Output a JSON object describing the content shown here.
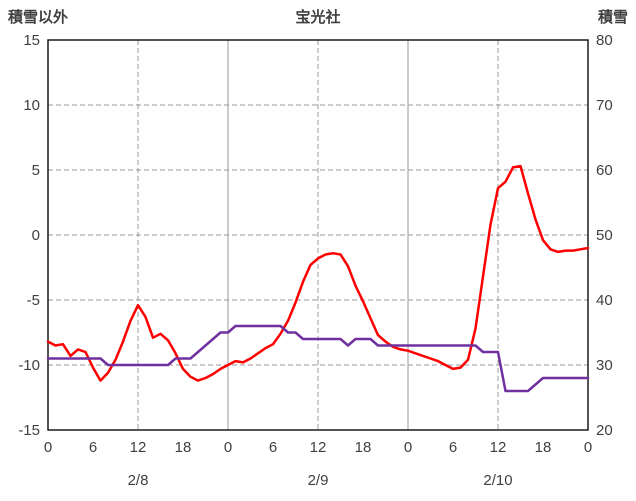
{
  "header": {
    "left_axis_label": "積雪以外",
    "title": "宝光社",
    "right_axis_label": "積雪"
  },
  "colors": {
    "red_series": "#FF0000",
    "purple_series": "#7030A0",
    "grid": "#999999",
    "border": "#1A1A1A",
    "text": "#404040"
  },
  "chart_data": {
    "type": "line",
    "title": "宝光社",
    "x_unit": "hour",
    "x_range": [
      0,
      72
    ],
    "x_ticks": [
      0,
      6,
      12,
      18,
      24,
      30,
      36,
      42,
      48,
      54,
      60,
      66,
      72
    ],
    "x_tick_labels": [
      "0",
      "6",
      "12",
      "18",
      "0",
      "6",
      "12",
      "18",
      "0",
      "6",
      "12",
      "18",
      "0"
    ],
    "day_labels": [
      {
        "label": "2/8",
        "x": 12
      },
      {
        "label": "2/9",
        "x": 36
      },
      {
        "label": "2/10",
        "x": 60
      }
    ],
    "left_axis": {
      "label": "積雪以外",
      "min": -15,
      "max": 15,
      "ticks": [
        15,
        10,
        5,
        0,
        -5,
        -10,
        -15
      ]
    },
    "right_axis": {
      "label": "積雪",
      "min": 20,
      "max": 80,
      "ticks": [
        80,
        70,
        60,
        50,
        40,
        30,
        20
      ]
    },
    "gridlines": {
      "horizontal_dashed": [
        10,
        5,
        0,
        -5,
        -10
      ],
      "vertical_solid": [
        24,
        48
      ],
      "vertical_dashed": [
        12,
        36,
        60
      ]
    },
    "legend": "none",
    "series": [
      {
        "name": "red",
        "axis": "left",
        "color": "#FF0000",
        "x": [
          0,
          1,
          2,
          3,
          4,
          5,
          6,
          7,
          8,
          9,
          10,
          11,
          12,
          13,
          14,
          15,
          16,
          17,
          18,
          19,
          20,
          21,
          22,
          23,
          24,
          25,
          26,
          27,
          28,
          29,
          30,
          31,
          32,
          33,
          34,
          35,
          36,
          37,
          38,
          39,
          40,
          41,
          42,
          43,
          44,
          45,
          46,
          47,
          48,
          49,
          50,
          51,
          52,
          53,
          54,
          55,
          56,
          57,
          58,
          59,
          60,
          61,
          62,
          63,
          64,
          65,
          66,
          67,
          68,
          69,
          70,
          71,
          72
        ],
        "values": [
          -8.2,
          -8.5,
          -8.4,
          -9.3,
          -8.8,
          -9.0,
          -10.2,
          -11.2,
          -10.6,
          -9.6,
          -8.2,
          -6.6,
          -5.4,
          -6.3,
          -7.9,
          -7.6,
          -8.1,
          -9.1,
          -10.3,
          -10.9,
          -11.2,
          -11.0,
          -10.7,
          -10.3,
          -10.0,
          -9.7,
          -9.8,
          -9.5,
          -9.1,
          -8.7,
          -8.4,
          -7.6,
          -6.6,
          -5.2,
          -3.6,
          -2.3,
          -1.8,
          -1.5,
          -1.4,
          -1.5,
          -2.4,
          -3.9,
          -5.1,
          -6.4,
          -7.7,
          -8.2,
          -8.6,
          -8.8,
          -8.9,
          -9.1,
          -9.3,
          -9.5,
          -9.7,
          -10.0,
          -10.3,
          -10.2,
          -9.6,
          -7.2,
          -3.2,
          0.8,
          3.6,
          4.1,
          5.2,
          5.3,
          3.2,
          1.2,
          -0.4,
          -1.1,
          -1.3,
          -1.2,
          -1.2,
          -1.1,
          -1.0
        ]
      },
      {
        "name": "purple",
        "axis": "right",
        "color": "#7030A0",
        "x": [
          0,
          1,
          2,
          3,
          4,
          5,
          6,
          7,
          8,
          9,
          10,
          11,
          12,
          13,
          14,
          15,
          16,
          17,
          18,
          19,
          20,
          21,
          22,
          23,
          24,
          25,
          26,
          27,
          28,
          29,
          30,
          31,
          32,
          33,
          34,
          35,
          36,
          37,
          38,
          39,
          40,
          41,
          42,
          43,
          44,
          45,
          46,
          47,
          48,
          49,
          50,
          51,
          52,
          53,
          54,
          55,
          56,
          57,
          58,
          59,
          60,
          61,
          62,
          63,
          64,
          65,
          66,
          67,
          68,
          69,
          70,
          71,
          72
        ],
        "values": [
          31,
          31,
          31,
          31,
          31,
          31,
          31,
          31,
          30,
          30,
          30,
          30,
          30,
          30,
          30,
          30,
          30,
          31,
          31,
          31,
          32,
          33,
          34,
          35,
          35,
          36,
          36,
          36,
          36,
          36,
          36,
          36,
          35,
          35,
          34,
          34,
          34,
          34,
          34,
          34,
          33,
          34,
          34,
          34,
          33,
          33,
          33,
          33,
          33,
          33,
          33,
          33,
          33,
          33,
          33,
          33,
          33,
          33,
          32,
          32,
          32,
          26,
          26,
          26,
          26,
          27,
          28,
          28,
          28,
          28,
          28,
          28,
          28
        ]
      }
    ]
  }
}
